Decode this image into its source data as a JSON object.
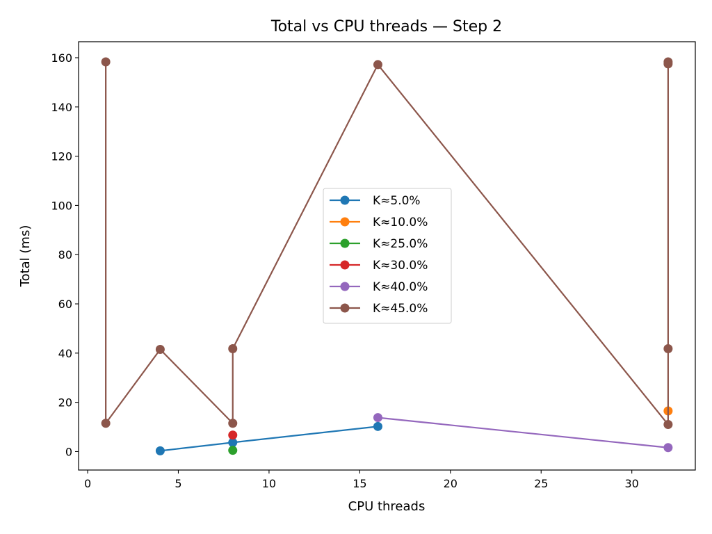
{
  "chart_data": {
    "type": "line",
    "title": "Total vs CPU threads — Step 2",
    "xlabel": "CPU threads",
    "ylabel": "Total (ms)",
    "xlim": [
      -0.5,
      33.5
    ],
    "ylim": [
      -7.5,
      166.5
    ],
    "xticks": [
      0,
      5,
      10,
      15,
      20,
      25,
      30
    ],
    "yticks": [
      0,
      20,
      40,
      60,
      80,
      100,
      120,
      140,
      160
    ],
    "grid": false,
    "legend_position": "center",
    "series": [
      {
        "name": "K≈5.0%",
        "color": "#1f77b4",
        "points": [
          [
            4,
            0.3
          ],
          [
            8,
            3.7
          ],
          [
            16,
            10.2
          ]
        ]
      },
      {
        "name": "K≈10.0%",
        "color": "#ff7f0e",
        "points": [
          [
            32,
            16.5
          ]
        ]
      },
      {
        "name": "K≈25.0%",
        "color": "#2ca02c",
        "points": [
          [
            8,
            0.5
          ]
        ]
      },
      {
        "name": "K≈30.0%",
        "color": "#d62728",
        "points": [
          [
            8,
            6.7
          ]
        ]
      },
      {
        "name": "K≈40.0%",
        "color": "#9467bd",
        "points": [
          [
            16,
            13.8
          ],
          [
            32,
            1.6
          ]
        ]
      },
      {
        "name": "K≈45.0%",
        "color": "#8c564b",
        "points": [
          [
            1,
            158.3
          ],
          [
            1,
            11.5
          ],
          [
            4,
            41.5
          ],
          [
            8,
            11.5
          ],
          [
            8,
            41.8
          ],
          [
            16,
            157.2
          ],
          [
            32,
            11.0
          ],
          [
            32,
            41.8
          ],
          [
            32,
            157.5
          ],
          [
            32,
            158.3
          ]
        ]
      }
    ]
  }
}
